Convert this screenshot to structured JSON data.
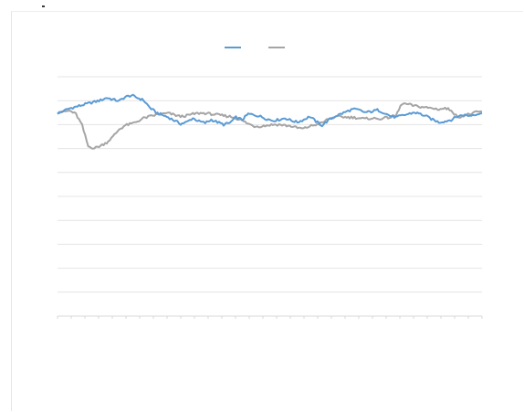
{
  "chart_data": {
    "type": "line",
    "title": "",
    "xlabel": "",
    "ylabel": "",
    "grid": true,
    "legend_position": "top",
    "series": [
      {
        "color": "#5b9bd5",
        "values": [
          0.0,
          0.06,
          0.12,
          0.16,
          0.2,
          0.24,
          0.28,
          0.32,
          0.38,
          0.34,
          0.3,
          0.4,
          0.44,
          0.38,
          0.32,
          0.14,
          0.02,
          -0.04,
          -0.1,
          -0.18,
          -0.26,
          -0.22,
          -0.12,
          -0.2,
          -0.24,
          -0.16,
          -0.22,
          -0.28,
          -0.24,
          -0.1,
          -0.16,
          -0.02,
          -0.04,
          -0.08,
          -0.14,
          -0.18,
          -0.16,
          -0.12,
          -0.18,
          -0.22,
          -0.16,
          -0.08,
          -0.2,
          -0.3,
          -0.18,
          -0.08,
          -0.02,
          0.04,
          0.1,
          0.08,
          0.02,
          0.04,
          0.08,
          0.02,
          -0.06,
          -0.1,
          -0.06,
          -0.02,
          0.02,
          -0.02,
          -0.08,
          -0.16,
          -0.22,
          -0.2,
          -0.16,
          -0.08,
          -0.04,
          -0.06,
          -0.02,
          0.0
        ]
      },
      {
        "color": "#a5a5a5",
        "values": [
          0.02,
          0.04,
          0.06,
          -0.02,
          -0.3,
          -0.82,
          -0.86,
          -0.8,
          -0.72,
          -0.58,
          -0.4,
          -0.3,
          -0.26,
          -0.2,
          -0.12,
          -0.08,
          -0.04,
          -0.02,
          0.0,
          -0.04,
          -0.08,
          -0.06,
          -0.02,
          0.0,
          0.0,
          -0.02,
          -0.04,
          -0.06,
          -0.08,
          -0.12,
          -0.18,
          -0.26,
          -0.32,
          -0.32,
          -0.3,
          -0.28,
          -0.28,
          -0.3,
          -0.32,
          -0.36,
          -0.38,
          -0.32,
          -0.28,
          -0.24,
          -0.14,
          -0.1,
          -0.08,
          -0.1,
          -0.1,
          -0.12,
          -0.14,
          -0.12,
          -0.14,
          -0.12,
          -0.1,
          -0.06,
          0.24,
          0.22,
          0.18,
          0.16,
          0.14,
          0.12,
          0.1,
          0.12,
          0.08,
          -0.1,
          -0.06,
          -0.02,
          0.02,
          0.04
        ]
      }
    ],
    "ylim": [
      -5.0,
      0.9
    ],
    "gridlines": 11
  }
}
